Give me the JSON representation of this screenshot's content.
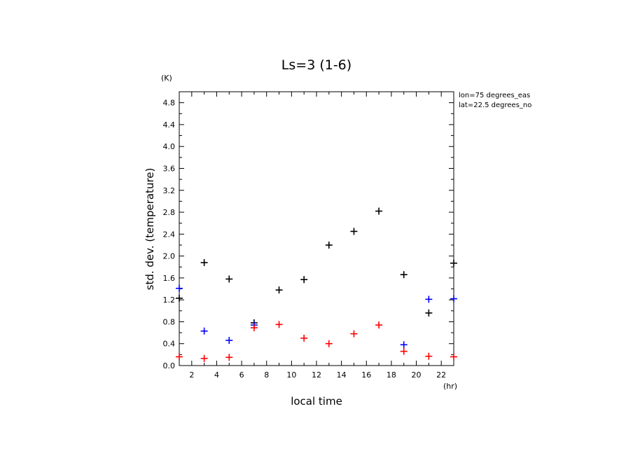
{
  "chart_data": {
    "type": "scatter",
    "title": "Ls=3 (1-6)",
    "xlabel": "local time",
    "ylabel": "std. dev. (temperature)",
    "x_unit": "(hr)",
    "y_unit": "(K)",
    "xlim": [
      1,
      23
    ],
    "ylim": [
      0,
      5.0
    ],
    "x_ticks": [
      "2",
      "4",
      "6",
      "8",
      "10",
      "12",
      "14",
      "16",
      "18",
      "20",
      "22"
    ],
    "y_ticks": [
      "0.0",
      "0.4",
      "0.8",
      "1.2",
      "1.6",
      "2.0",
      "2.4",
      "2.8",
      "3.2",
      "3.6",
      "4.0",
      "4.4",
      "4.8"
    ],
    "annotations": [
      "lon=75 degrees_eas",
      "lat=22.5 degrees_no"
    ],
    "series": [
      {
        "color": "#000000",
        "x": [
          1,
          3,
          5,
          7,
          9,
          11,
          13,
          15,
          17,
          19,
          21,
          23
        ],
        "y": [
          1.23,
          1.88,
          1.58,
          0.78,
          1.38,
          1.57,
          2.2,
          2.45,
          2.82,
          1.66,
          0.96,
          1.87
        ]
      },
      {
        "color": "#0000ff",
        "x": [
          1,
          3,
          5,
          7,
          19,
          21,
          23
        ],
        "y": [
          1.41,
          0.63,
          0.46,
          0.74,
          0.38,
          1.21,
          1.22
        ]
      },
      {
        "color": "#ff0000",
        "x": [
          1,
          3,
          5,
          7,
          9,
          11,
          13,
          15,
          17,
          19,
          21,
          23
        ],
        "y": [
          0.16,
          0.13,
          0.15,
          0.69,
          0.75,
          0.5,
          0.4,
          0.58,
          0.74,
          0.26,
          0.17,
          0.16
        ]
      }
    ]
  }
}
